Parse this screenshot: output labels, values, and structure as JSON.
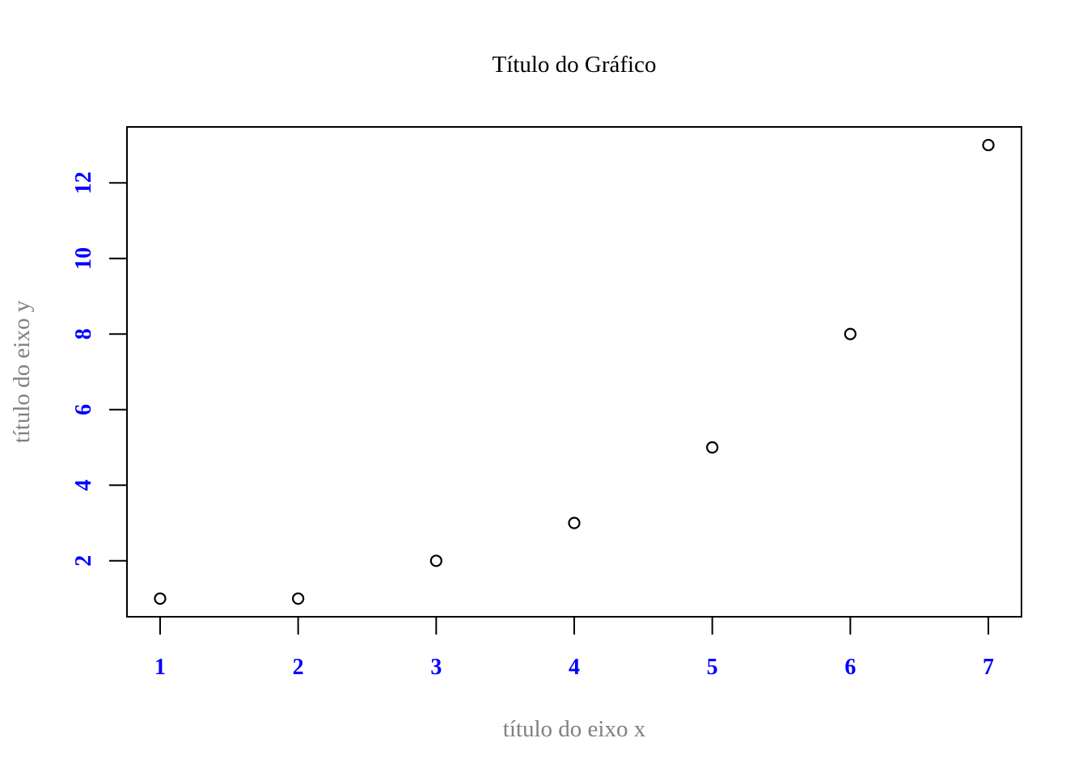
{
  "chart_data": {
    "type": "scatter",
    "title": "Título do Gráfico",
    "xlabel": "título do eixo x",
    "ylabel": "título do eixo y",
    "x": [
      1,
      2,
      3,
      4,
      5,
      6,
      7
    ],
    "y": [
      1,
      1,
      2,
      3,
      5,
      8,
      13
    ],
    "xlim": [
      0.76,
      7.24
    ],
    "ylim": [
      0.52,
      13.48
    ],
    "xticks": [
      1,
      2,
      3,
      4,
      5,
      6,
      7
    ],
    "yticks": [
      2,
      4,
      6,
      8,
      10,
      12
    ],
    "grid": false,
    "marker": "open-circle",
    "colors": {
      "tick_labels": "#0000ff",
      "axis_titles": "#808080",
      "title": "#000000",
      "points": "#000000",
      "frame": "#000000"
    }
  }
}
